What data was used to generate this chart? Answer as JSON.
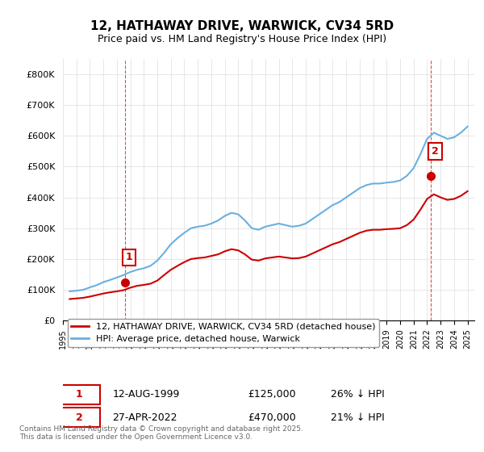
{
  "title": "12, HATHAWAY DRIVE, WARWICK, CV34 5RD",
  "subtitle": "Price paid vs. HM Land Registry's House Price Index (HPI)",
  "ylabel": "",
  "ylim": [
    0,
    850000
  ],
  "yticks": [
    0,
    100000,
    200000,
    300000,
    400000,
    500000,
    600000,
    700000,
    800000
  ],
  "ytick_labels": [
    "£0",
    "£100K",
    "£200K",
    "£300K",
    "£400K",
    "£500K",
    "£600K",
    "£700K",
    "£800K"
  ],
  "hpi_color": "#6ab0e0",
  "price_color": "#cc0000",
  "marker_color": "#cc0000",
  "annotation_box_color": "#cc0000",
  "background_color": "#ffffff",
  "grid_color": "#dddddd",
  "legend_label_price": "12, HATHAWAY DRIVE, WARWICK, CV34 5RD (detached house)",
  "legend_label_hpi": "HPI: Average price, detached house, Warwick",
  "annotation1_label": "1",
  "annotation1_date": "12-AUG-1999",
  "annotation1_price": "£125,000",
  "annotation1_hpi": "26% ↓ HPI",
  "annotation2_label": "2",
  "annotation2_date": "27-APR-2022",
  "annotation2_price": "£470,000",
  "annotation2_hpi": "21% ↓ HPI",
  "footer": "Contains HM Land Registry data © Crown copyright and database right 2025.\nThis data is licensed under the Open Government Licence v3.0.",
  "hpi_data_x": [
    1995.5,
    1996.0,
    1996.5,
    1997.0,
    1997.5,
    1998.0,
    1998.5,
    1999.0,
    1999.5,
    2000.0,
    2000.5,
    2001.0,
    2001.5,
    2002.0,
    2002.5,
    2003.0,
    2003.5,
    2004.0,
    2004.5,
    2005.0,
    2005.5,
    2006.0,
    2006.5,
    2007.0,
    2007.5,
    2008.0,
    2008.5,
    2009.0,
    2009.5,
    2010.0,
    2010.5,
    2011.0,
    2011.5,
    2012.0,
    2012.5,
    2013.0,
    2013.5,
    2014.0,
    2014.5,
    2015.0,
    2015.5,
    2016.0,
    2016.5,
    2017.0,
    2017.5,
    2018.0,
    2018.5,
    2019.0,
    2019.5,
    2020.0,
    2020.5,
    2021.0,
    2021.5,
    2022.0,
    2022.5,
    2023.0,
    2023.5,
    2024.0,
    2024.5,
    2025.0
  ],
  "hpi_data_y": [
    95000,
    97000,
    100000,
    108000,
    115000,
    125000,
    132000,
    140000,
    148000,
    158000,
    165000,
    170000,
    178000,
    195000,
    220000,
    248000,
    268000,
    285000,
    300000,
    305000,
    308000,
    315000,
    325000,
    340000,
    350000,
    345000,
    325000,
    300000,
    295000,
    305000,
    310000,
    315000,
    310000,
    305000,
    308000,
    315000,
    330000,
    345000,
    360000,
    375000,
    385000,
    400000,
    415000,
    430000,
    440000,
    445000,
    445000,
    448000,
    450000,
    455000,
    470000,
    495000,
    540000,
    590000,
    610000,
    600000,
    590000,
    595000,
    610000,
    630000
  ],
  "price_data_x": [
    1995.5,
    1996.0,
    1996.5,
    1997.0,
    1997.5,
    1998.0,
    1998.5,
    1999.0,
    1999.5,
    2000.0,
    2000.5,
    2001.0,
    2001.5,
    2002.0,
    2002.5,
    2003.0,
    2003.5,
    2004.0,
    2004.5,
    2005.0,
    2005.5,
    2006.0,
    2006.5,
    2007.0,
    2007.5,
    2008.0,
    2008.5,
    2009.0,
    2009.5,
    2010.0,
    2010.5,
    2011.0,
    2011.5,
    2012.0,
    2012.5,
    2013.0,
    2013.5,
    2014.0,
    2014.5,
    2015.0,
    2015.5,
    2016.0,
    2016.5,
    2017.0,
    2017.5,
    2018.0,
    2018.5,
    2019.0,
    2019.5,
    2020.0,
    2020.5,
    2021.0,
    2021.5,
    2022.0,
    2022.5,
    2023.0,
    2023.5,
    2024.0,
    2024.5,
    2025.0
  ],
  "price_data_y": [
    70000,
    72000,
    74000,
    78000,
    83000,
    88000,
    92000,
    95000,
    99000,
    107000,
    113000,
    116000,
    120000,
    130000,
    148000,
    165000,
    178000,
    190000,
    200000,
    203000,
    205000,
    210000,
    215000,
    225000,
    232000,
    228000,
    215000,
    198000,
    195000,
    202000,
    205000,
    208000,
    205000,
    202000,
    203000,
    208000,
    218000,
    228000,
    238000,
    248000,
    255000,
    265000,
    275000,
    285000,
    292000,
    295000,
    295000,
    297000,
    298000,
    300000,
    310000,
    328000,
    360000,
    395000,
    410000,
    400000,
    392000,
    395000,
    405000,
    420000
  ],
  "sale1_x": 1999.6,
  "sale1_y": 125000,
  "sale2_x": 2022.3,
  "sale2_y": 470000,
  "xtick_years": [
    1995,
    1996,
    1997,
    1998,
    1999,
    2000,
    2001,
    2002,
    2003,
    2004,
    2005,
    2006,
    2007,
    2008,
    2009,
    2010,
    2011,
    2012,
    2013,
    2014,
    2015,
    2016,
    2017,
    2018,
    2019,
    2020,
    2021,
    2022,
    2023,
    2024,
    2025
  ]
}
